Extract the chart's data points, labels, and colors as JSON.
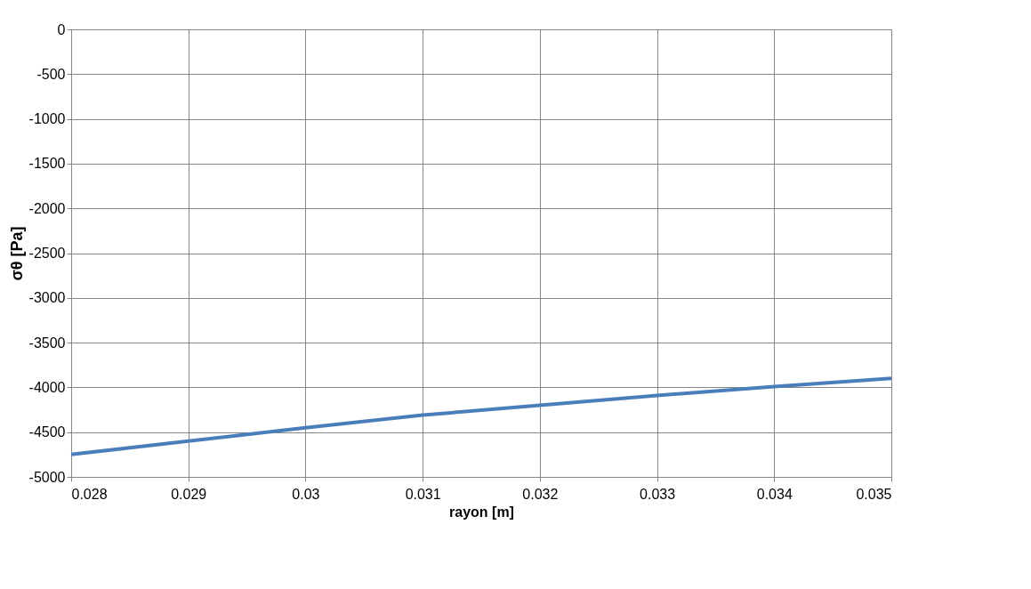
{
  "chart_data": {
    "type": "line",
    "xlabel": "rayon [m]",
    "ylabel": "σθ [Pa]",
    "x": [
      0.028,
      0.029,
      0.03,
      0.031,
      0.032,
      0.033,
      0.034,
      0.035
    ],
    "series": [
      {
        "color": "#4a7ebb",
        "values": [
          -4750,
          -4600,
          -4450,
          -4310,
          -4200,
          -4090,
          -3990,
          -3900
        ]
      }
    ],
    "xlim": [
      0.028,
      0.035
    ],
    "xticks": [
      0.028,
      0.029,
      0.03,
      0.031,
      0.032,
      0.033,
      0.034,
      0.035
    ],
    "ylim": [
      -5000,
      0
    ],
    "yticks": [
      0,
      -500,
      -1000,
      -1500,
      -2000,
      -2500,
      -3000,
      -3500,
      -4000,
      -4500,
      -5000
    ],
    "grid": true,
    "marker": "none",
    "line_style": "solid"
  }
}
